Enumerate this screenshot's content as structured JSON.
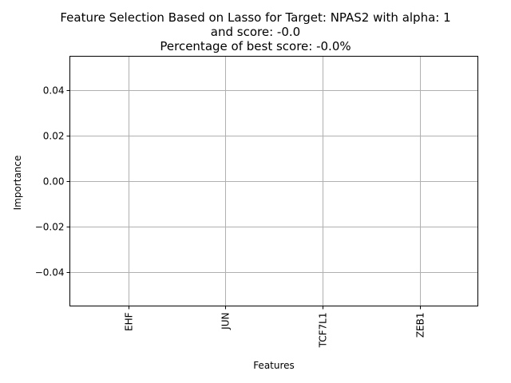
{
  "chart_data": {
    "type": "bar",
    "title_lines": [
      "Feature Selection Based on Lasso for Target: NPAS2 with alpha: 1",
      "and score: -0.0",
      "Percentage of best score: -0.0%"
    ],
    "xlabel": "Features",
    "ylabel": "Importance",
    "categories": [
      "EHF",
      "JUN",
      "TCF7L1",
      "ZEB1"
    ],
    "values": [
      0,
      0,
      0,
      0
    ],
    "ylim": [
      -0.055,
      0.055
    ],
    "yticks": [
      -0.04,
      -0.02,
      0.0,
      0.02,
      0.04
    ],
    "ytick_labels": [
      "−0.04",
      "−0.02",
      "0.00",
      "0.02",
      "0.04"
    ],
    "grid": true,
    "colors": {
      "grid": "#b0b0b0",
      "axis": "#000000",
      "bar": "#1f77b4"
    }
  }
}
